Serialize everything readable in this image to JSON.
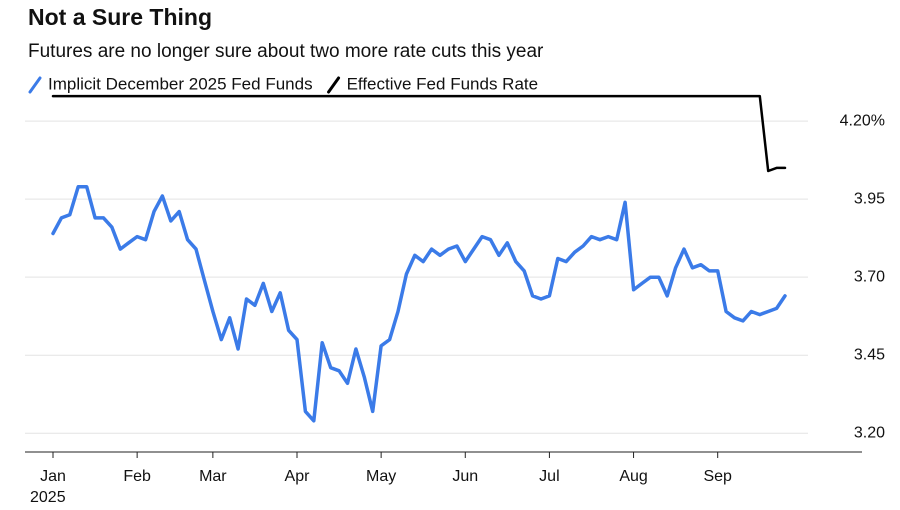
{
  "chart_data": {
    "type": "line",
    "title": "Not a Sure Thing",
    "subtitle": "Futures are no longer sure about two more rate cuts this year",
    "year_label": "2025",
    "categories": [
      "Jan",
      null,
      null,
      null,
      null,
      null,
      null,
      null,
      null,
      null,
      "Feb",
      null,
      null,
      null,
      null,
      null,
      null,
      null,
      null,
      "Mar",
      null,
      null,
      null,
      null,
      null,
      null,
      null,
      null,
      null,
      "Apr",
      null,
      null,
      null,
      null,
      null,
      null,
      null,
      null,
      null,
      "May",
      null,
      null,
      null,
      null,
      null,
      null,
      null,
      null,
      null,
      "Jun",
      null,
      null,
      null,
      null,
      null,
      null,
      null,
      null,
      null,
      "Jul",
      null,
      null,
      null,
      null,
      null,
      null,
      null,
      null,
      null,
      "Aug",
      null,
      null,
      null,
      null,
      null,
      null,
      null,
      null,
      null,
      "Sep",
      null,
      null,
      null,
      null,
      null,
      null,
      null,
      null
    ],
    "series": [
      {
        "name": "Implicit December 2025 Fed Funds",
        "color": "#3b7be8",
        "values": [
          3.84,
          3.89,
          3.9,
          3.99,
          3.99,
          3.89,
          3.89,
          3.86,
          3.79,
          3.81,
          3.83,
          3.82,
          3.91,
          3.96,
          3.88,
          3.91,
          3.82,
          3.79,
          3.69,
          3.59,
          3.5,
          3.57,
          3.47,
          3.63,
          3.61,
          3.68,
          3.59,
          3.65,
          3.53,
          3.5,
          3.27,
          3.24,
          3.49,
          3.41,
          3.4,
          3.36,
          3.47,
          3.38,
          3.27,
          3.48,
          3.5,
          3.59,
          3.71,
          3.77,
          3.75,
          3.79,
          3.77,
          3.79,
          3.8,
          3.75,
          3.79,
          3.83,
          3.82,
          3.77,
          3.81,
          3.75,
          3.72,
          3.64,
          3.63,
          3.64,
          3.76,
          3.75,
          3.78,
          3.8,
          3.83,
          3.82,
          3.83,
          3.82,
          3.94,
          3.66,
          3.68,
          3.7,
          3.7,
          3.64,
          3.73,
          3.79,
          3.73,
          3.74,
          3.72,
          3.72,
          3.59,
          3.57,
          3.56,
          3.59,
          3.58,
          3.59,
          3.6,
          3.64
        ]
      },
      {
        "name": "Effective Fed Funds Rate",
        "color": "#000000",
        "values": [
          4.28,
          4.28,
          4.28,
          4.28,
          4.28,
          4.28,
          4.28,
          4.28,
          4.28,
          4.28,
          4.28,
          4.28,
          4.28,
          4.28,
          4.28,
          4.28,
          4.28,
          4.28,
          4.28,
          4.28,
          4.28,
          4.28,
          4.28,
          4.28,
          4.28,
          4.28,
          4.28,
          4.28,
          4.28,
          4.28,
          4.28,
          4.28,
          4.28,
          4.28,
          4.28,
          4.28,
          4.28,
          4.28,
          4.28,
          4.28,
          4.28,
          4.28,
          4.28,
          4.28,
          4.28,
          4.28,
          4.28,
          4.28,
          4.28,
          4.28,
          4.28,
          4.28,
          4.28,
          4.28,
          4.28,
          4.28,
          4.28,
          4.28,
          4.28,
          4.28,
          4.28,
          4.28,
          4.28,
          4.28,
          4.28,
          4.28,
          4.28,
          4.28,
          4.28,
          4.28,
          4.28,
          4.28,
          4.28,
          4.28,
          4.28,
          4.28,
          4.28,
          4.28,
          4.28,
          4.28,
          4.28,
          4.28,
          4.28,
          4.28,
          4.28,
          4.04,
          4.05,
          4.05
        ]
      }
    ],
    "ylim": [
      3.14,
      4.29
    ],
    "yticks": [
      {
        "value": 3.2,
        "label": "3.20"
      },
      {
        "value": 3.45,
        "label": "3.45"
      },
      {
        "value": 3.7,
        "label": "3.70"
      },
      {
        "value": 3.95,
        "label": "3.95"
      },
      {
        "value": 4.2,
        "label": "4.20%"
      }
    ],
    "grid": true
  }
}
